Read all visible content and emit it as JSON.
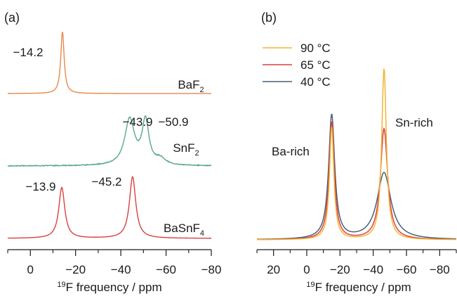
{
  "chart_data": [
    {
      "type": "line",
      "panel_label": "(a)",
      "xlabel": "19F frequency / ppm",
      "xlabel_sup": "19",
      "xlabel_rest": "F frequency / ppm",
      "x_axis": "reversed",
      "xlim": [
        10,
        -80
      ],
      "xticks": [
        0,
        -20,
        -40,
        -60,
        -80
      ],
      "xtick_labels": [
        "0",
        "−20",
        "−40",
        "−60",
        "−80"
      ],
      "stacked": true,
      "series": [
        {
          "name": "BaF2",
          "name_main": "BaF",
          "name_sub": "2",
          "name_tail": "",
          "color": "#e8884a",
          "peaks": [
            {
              "center": -14.2,
              "width": 0.9,
              "height": 1.0
            }
          ],
          "peak_labels": [
            "−14.2"
          ]
        },
        {
          "name": "SnF2",
          "name_main": "SnF",
          "name_sub": "2",
          "name_tail": "",
          "color": "#5aa88a",
          "peaks": [
            {
              "center": -43.9,
              "width": 2.6,
              "height": 0.78
            },
            {
              "center": -50.9,
              "width": 1.8,
              "height": 0.74
            },
            {
              "center": -57.5,
              "width": 2.5,
              "height": 0.1
            }
          ],
          "peak_labels": [
            "−43.9",
            "−50.9"
          ]
        },
        {
          "name": "BaSnF4",
          "name_main": "BaSnF",
          "name_sub": "4",
          "name_tail": "",
          "color": "#d94040",
          "peaks": [
            {
              "center": -13.9,
              "width": 1.6,
              "height": 0.95
            },
            {
              "center": -45.2,
              "width": 1.7,
              "height": 1.15
            }
          ],
          "peak_labels": [
            "−13.9",
            "−45.2"
          ]
        }
      ]
    },
    {
      "type": "line",
      "panel_label": "(b)",
      "xlabel": "19F frequency / ppm",
      "xlabel_sup": "19",
      "xlabel_rest": "F frequency / ppm",
      "x_axis": "reversed",
      "xlim": [
        30,
        -90
      ],
      "xticks": [
        20,
        0,
        -20,
        -40,
        -60,
        -80
      ],
      "xtick_labels": [
        "20",
        "0",
        "−20",
        "−40",
        "−60",
        "−80"
      ],
      "legend": "top-left",
      "annotations": [
        "Ba-rich",
        "Sn-rich"
      ],
      "series": [
        {
          "name": "90 °C",
          "color": "#f5b331",
          "peaks": [
            {
              "center": -15,
              "width": 1.6,
              "height": 0.84
            },
            {
              "center": -46.5,
              "width": 1.7,
              "height": 1.28
            }
          ]
        },
        {
          "name": "65 °C",
          "color": "#d94040",
          "peaks": [
            {
              "center": -15,
              "width": 1.9,
              "height": 0.88
            },
            {
              "center": -46.5,
              "width": 2.6,
              "height": 0.83
            }
          ]
        },
        {
          "name": "40 °C",
          "color": "#4a6075",
          "peaks": [
            {
              "center": -15,
              "width": 2.2,
              "height": 0.93
            },
            {
              "center": -46.5,
              "width": 5.0,
              "height": 0.5
            }
          ]
        }
      ]
    }
  ]
}
